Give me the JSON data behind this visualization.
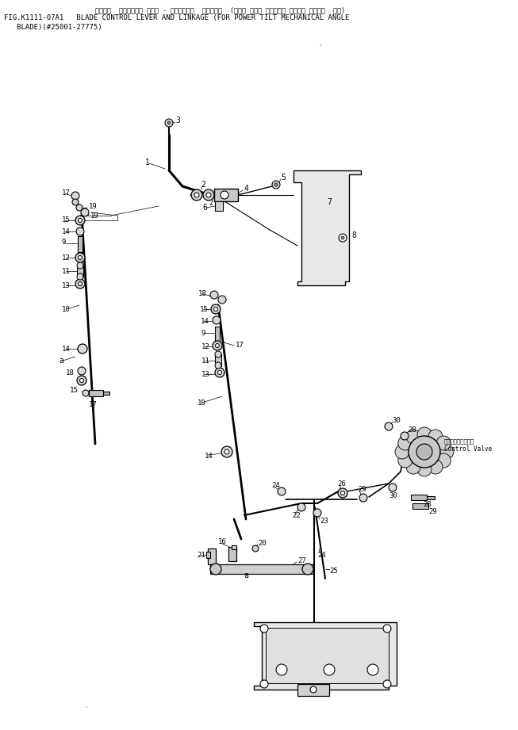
{
  "title_line1": "ブレード　1コントロール レバー ― オプサービス　リンケージ　(パワー チルト メカニカル アングル ブレード ヨウ)",
  "title_line2": "FIG.K1111-07A1   BLADE CONTROL LEVER AND LINKAGE (FOR POWER TILT MECHANICAL ANGLE",
  "title_line3": "   BLADE)(#25001-27775)",
  "bg_color": "#ffffff",
  "lc": "#000000",
  "tc": "#000000"
}
